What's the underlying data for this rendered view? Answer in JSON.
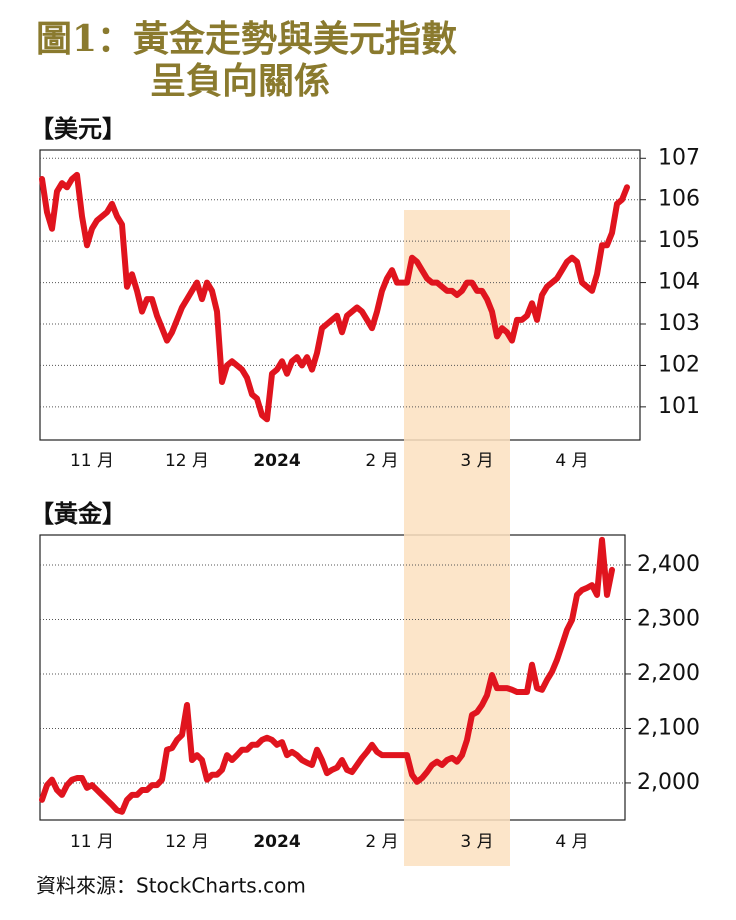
{
  "title": [
    "圖1：黃金走勢與美元指數",
    "呈負向關係"
  ],
  "source": "資料來源：StockCharts.com",
  "chart_data": [
    {
      "type": "line",
      "title": "【美元】",
      "color": "#e0141e",
      "grid": true,
      "categories": [
        null,
        null,
        null,
        null,
        null,
        null,
        null,
        null,
        null,
        null,
        "11 月",
        null,
        null,
        null,
        null,
        null,
        null,
        null,
        null,
        null,
        null,
        null,
        null,
        null,
        null,
        null,
        null,
        null,
        null,
        "12 月",
        null,
        null,
        null,
        null,
        null,
        null,
        null,
        null,
        null,
        null,
        null,
        null,
        null,
        null,
        null,
        null,
        null,
        "2024",
        null,
        null,
        null,
        null,
        null,
        null,
        null,
        null,
        null,
        null,
        null,
        null,
        null,
        null,
        null,
        null,
        null,
        null,
        null,
        null,
        "2 月",
        null,
        null,
        null,
        null,
        null,
        null,
        null,
        null,
        null,
        null,
        null,
        null,
        null,
        null,
        null,
        null,
        null,
        null,
        "3 月",
        null,
        null,
        null,
        null,
        null,
        null,
        null,
        null,
        null,
        null,
        null,
        null,
        null,
        null,
        null,
        null,
        null,
        null,
        "4 月",
        null,
        null,
        null,
        null,
        null,
        null,
        null,
        null,
        null,
        null,
        null
      ],
      "values": [
        106.5,
        105.7,
        105.3,
        106.2,
        106.4,
        106.3,
        106.5,
        106.6,
        105.6,
        104.9,
        105.3,
        105.5,
        105.6,
        105.7,
        105.9,
        105.6,
        105.4,
        103.9,
        104.2,
        103.8,
        103.3,
        103.6,
        103.6,
        103.2,
        102.9,
        102.6,
        102.8,
        103.1,
        103.4,
        103.6,
        103.8,
        104.0,
        103.6,
        104.0,
        103.8,
        103.3,
        101.6,
        102.0,
        102.1,
        102.0,
        101.9,
        101.7,
        101.3,
        101.2,
        100.8,
        100.7,
        101.8,
        101.9,
        102.1,
        101.8,
        102.1,
        102.2,
        102.0,
        102.2,
        101.9,
        102.3,
        102.9,
        103.0,
        103.1,
        103.2,
        102.8,
        103.2,
        103.3,
        103.4,
        103.3,
        103.1,
        102.9,
        103.3,
        103.8,
        104.1,
        104.3,
        104.0,
        104.0,
        104.0,
        104.6,
        104.5,
        104.3,
        104.1,
        104.0,
        104.0,
        103.9,
        103.8,
        103.8,
        103.7,
        103.8,
        104.0,
        104.0,
        103.8,
        103.8,
        103.6,
        103.3,
        102.7,
        102.9,
        102.8,
        102.6,
        103.1,
        103.1,
        103.2,
        103.5,
        103.1,
        103.7,
        103.9,
        104.0,
        104.1,
        104.3,
        104.5,
        104.6,
        104.5,
        104.0,
        103.9,
        103.8,
        104.2,
        104.9,
        104.9,
        105.2,
        105.9,
        106.0,
        106.3
      ],
      "ylim": [
        100.2,
        107.2
      ],
      "yticks": [
        101,
        102,
        103,
        104,
        105,
        106,
        107
      ]
    },
    {
      "type": "line",
      "title": "【黃金】",
      "color": "#e0141e",
      "grid": true,
      "categories": [
        null,
        null,
        null,
        null,
        null,
        null,
        null,
        null,
        null,
        null,
        "11 月",
        null,
        null,
        null,
        null,
        null,
        null,
        null,
        null,
        null,
        null,
        null,
        null,
        null,
        null,
        null,
        null,
        null,
        null,
        "12 月",
        null,
        null,
        null,
        null,
        null,
        null,
        null,
        null,
        null,
        null,
        null,
        null,
        null,
        null,
        null,
        null,
        null,
        "2024",
        null,
        null,
        null,
        null,
        null,
        null,
        null,
        null,
        null,
        null,
        null,
        null,
        null,
        null,
        null,
        null,
        null,
        null,
        null,
        null,
        "2 月",
        null,
        null,
        null,
        null,
        null,
        null,
        null,
        null,
        null,
        null,
        null,
        null,
        null,
        null,
        null,
        null,
        null,
        null,
        "3 月",
        null,
        null,
        null,
        null,
        null,
        null,
        null,
        null,
        null,
        null,
        null,
        null,
        null,
        null,
        null,
        null,
        null,
        null,
        "4 月",
        null,
        null,
        null,
        null,
        null,
        null,
        null,
        null
      ],
      "values": [
        1969,
        1996,
        2006,
        1987,
        1978,
        1996,
        2006,
        2009,
        2009,
        1991,
        1996,
        1987,
        1978,
        1969,
        1960,
        1950,
        1947,
        1969,
        1978,
        1978,
        1987,
        1987,
        1996,
        1996,
        2006,
        2061,
        2064,
        2079,
        2088,
        2143,
        2042,
        2051,
        2042,
        2006,
        2015,
        2015,
        2024,
        2051,
        2042,
        2051,
        2061,
        2061,
        2070,
        2070,
        2079,
        2083,
        2079,
        2070,
        2075,
        2051,
        2057,
        2051,
        2042,
        2037,
        2033,
        2061,
        2042,
        2018,
        2024,
        2028,
        2042,
        2024,
        2020,
        2033,
        2046,
        2057,
        2070,
        2057,
        2051,
        2051,
        2051,
        2051,
        2051,
        2051,
        2015,
        2002,
        2009,
        2020,
        2033,
        2039,
        2033,
        2042,
        2046,
        2039,
        2051,
        2079,
        2125,
        2130,
        2143,
        2161,
        2198,
        2174,
        2174,
        2174,
        2171,
        2167,
        2167,
        2167,
        2217,
        2174,
        2171,
        2189,
        2204,
        2226,
        2253,
        2281,
        2299,
        2345,
        2354,
        2358,
        2363,
        2345,
        2446,
        2345,
        2391
      ],
      "ylim": [
        1932,
        2455
      ],
      "yticks": [
        {
          "value": 2000,
          "label": "2,000"
        },
        {
          "value": 2100,
          "label": "2,100"
        },
        {
          "value": 2200,
          "label": "2,200"
        },
        {
          "value": 2300,
          "label": "2,300"
        },
        {
          "value": 2400,
          "label": "2,400"
        }
      ]
    }
  ]
}
